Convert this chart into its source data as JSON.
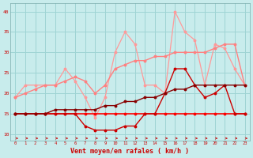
{
  "x": [
    0,
    1,
    2,
    3,
    4,
    5,
    6,
    7,
    8,
    9,
    10,
    11,
    12,
    13,
    14,
    15,
    16,
    17,
    18,
    19,
    20,
    21,
    22,
    23
  ],
  "background_color": "#c8ecec",
  "grid_color": "#9ed4d4",
  "xlabel": "Vent moyen/en rafales ( km/h )",
  "xlabel_fontsize": 6,
  "xlabel_color": "#cc0000",
  "yticks": [
    10,
    15,
    20,
    25,
    30,
    35,
    40
  ],
  "ylim": [
    8.5,
    42
  ],
  "xlim": [
    -0.5,
    23.5
  ],
  "series": {
    "light_pink": {
      "color": "#ff9999",
      "lw": 0.9,
      "y": [
        19,
        22,
        22,
        22,
        22,
        26,
        23,
        19,
        14,
        19,
        30,
        35,
        32,
        22,
        22,
        20,
        40,
        35,
        33,
        22,
        32,
        31,
        26,
        22
      ]
    },
    "medium_pink": {
      "color": "#ff8080",
      "lw": 1.0,
      "y": [
        19,
        20,
        21,
        22,
        22,
        23,
        24,
        23,
        20,
        22,
        26,
        27,
        28,
        28,
        29,
        29,
        30,
        30,
        30,
        30,
        31,
        32,
        32,
        22
      ]
    },
    "bright_red_flat": {
      "color": "#ff0000",
      "lw": 1.2,
      "y": [
        15,
        15,
        15,
        15,
        15,
        15,
        15,
        15,
        15,
        15,
        15,
        15,
        15,
        15,
        15,
        15,
        15,
        15,
        15,
        15,
        15,
        15,
        15,
        15
      ]
    },
    "dark_red_jagged": {
      "color": "#cc0000",
      "lw": 1.0,
      "y": [
        15,
        15,
        15,
        15,
        15,
        15,
        15,
        12,
        11,
        11,
        11,
        12,
        12,
        15,
        15,
        20,
        26,
        26,
        22,
        19,
        20,
        22,
        15,
        15
      ]
    },
    "dark_linear": {
      "color": "#880000",
      "lw": 1.0,
      "y": [
        15,
        15,
        15,
        15,
        16,
        16,
        16,
        16,
        16,
        17,
        17,
        18,
        18,
        19,
        19,
        20,
        21,
        21,
        22,
        22,
        22,
        22,
        22,
        22
      ]
    }
  }
}
